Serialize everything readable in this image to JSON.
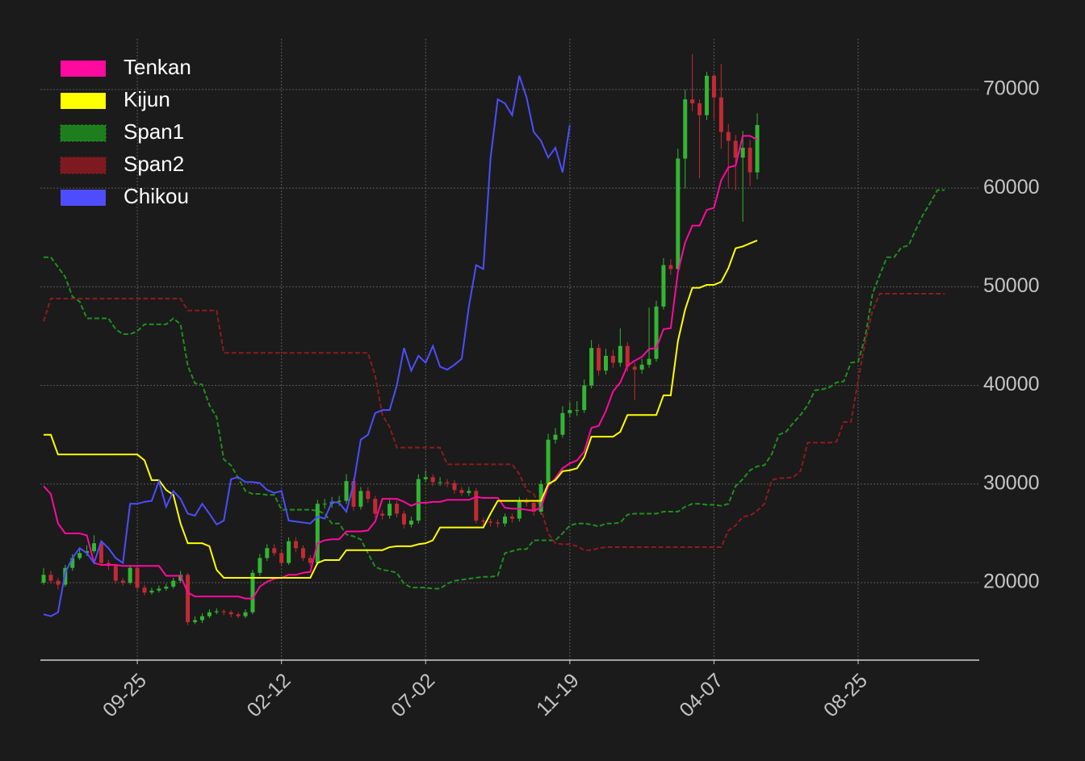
{
  "chart_data": {
    "type": "candlestick",
    "up_color": "#33b533",
    "down_color": "#c22a35",
    "candles": {
      "open": [
        20000,
        20800,
        20200,
        19800,
        21500,
        22500,
        23000,
        23200,
        24000,
        22000,
        21700,
        20200,
        20000,
        21500,
        19500,
        19000,
        19200,
        19400,
        19600,
        20200,
        20800,
        16000,
        16200,
        16600,
        17000,
        17100,
        17000,
        16800,
        16600,
        17000,
        21000,
        22500,
        23500,
        23000,
        22000,
        24200,
        23500,
        22500,
        22000,
        28000,
        28000,
        28200,
        28300,
        30300,
        27700,
        29300,
        28500,
        27000,
        26800,
        28000,
        27000,
        25900,
        26300,
        30500,
        30700,
        30200,
        30200,
        30100,
        29400,
        29100,
        29300,
        26300,
        26200,
        26100,
        26000,
        26700,
        26500,
        28200,
        28100,
        27200,
        30000,
        34500,
        35000,
        37200,
        37500,
        37500,
        40000,
        43800,
        41500,
        43000,
        42300,
        44000,
        41900,
        41600,
        42100,
        42700,
        48000,
        52200,
        51800,
        63000,
        69000,
        68600,
        67400,
        71400,
        69200,
        65700,
        64800,
        63100,
        64100,
        61600
      ],
      "high": [
        21500,
        21200,
        20500,
        21800,
        22900,
        23500,
        23800,
        24800,
        24300,
        22300,
        21900,
        20500,
        21800,
        21700,
        19800,
        19500,
        19700,
        19900,
        20500,
        21200,
        21000,
        16600,
        16900,
        17300,
        17400,
        17300,
        17200,
        17000,
        17300,
        21300,
        22900,
        23900,
        23900,
        23300,
        24600,
        24600,
        23800,
        22800,
        28400,
        28500,
        28700,
        28800,
        31000,
        30600,
        29700,
        29700,
        28800,
        27400,
        28400,
        28300,
        27300,
        26700,
        31000,
        31400,
        31000,
        30700,
        30500,
        30400,
        29700,
        29700,
        29600,
        26600,
        26500,
        26400,
        27000,
        27000,
        28700,
        28600,
        28400,
        30400,
        35100,
        35700,
        37900,
        38300,
        38400,
        40600,
        44600,
        44200,
        43700,
        43600,
        45800,
        44400,
        42300,
        42700,
        47900,
        48600,
        52900,
        52800,
        64000,
        70000,
        73600,
        69000,
        71800,
        71600,
        72600,
        66500,
        65400,
        65800,
        64900,
        67600
      ],
      "low": [
        19800,
        19900,
        19300,
        19600,
        21200,
        22300,
        22700,
        23000,
        21700,
        21300,
        19900,
        19700,
        19800,
        19200,
        18700,
        18800,
        19000,
        19200,
        19400,
        20000,
        15700,
        15800,
        15900,
        16400,
        16800,
        16700,
        16500,
        16400,
        16400,
        16800,
        20700,
        22200,
        22700,
        21700,
        21800,
        23100,
        22200,
        21700,
        21800,
        27500,
        27600,
        27800,
        28000,
        27300,
        27400,
        28100,
        26600,
        26400,
        26500,
        26600,
        25500,
        25600,
        26000,
        30200,
        29800,
        29800,
        29700,
        29000,
        28800,
        28800,
        26000,
        25800,
        25700,
        25600,
        25700,
        26100,
        26200,
        27700,
        26800,
        26900,
        29700,
        34100,
        34700,
        36800,
        36900,
        37200,
        39700,
        41000,
        41100,
        41800,
        41900,
        41400,
        38500,
        41200,
        41800,
        42400,
        47700,
        51200,
        51500,
        60000,
        67800,
        61000,
        66900,
        67000,
        64000,
        60000,
        59800,
        56600,
        60200,
        60900
      ],
      "close": [
        20800,
        20200,
        19800,
        21500,
        22500,
        23000,
        23200,
        24000,
        22000,
        21700,
        20200,
        20000,
        21500,
        19500,
        19000,
        19200,
        19400,
        19600,
        20200,
        20800,
        16000,
        16200,
        16600,
        17000,
        17100,
        17000,
        16800,
        16600,
        17000,
        21000,
        22500,
        23500,
        23000,
        22000,
        24200,
        23500,
        22500,
        22000,
        28000,
        28000,
        28200,
        28300,
        30300,
        27700,
        29300,
        28500,
        27000,
        26800,
        28000,
        27000,
        25900,
        26300,
        30500,
        30700,
        30200,
        30200,
        30100,
        29400,
        29100,
        29300,
        26300,
        26200,
        26100,
        26000,
        26700,
        26500,
        28200,
        28100,
        27200,
        30000,
        34500,
        35000,
        37200,
        37500,
        37500,
        40000,
        43800,
        41500,
        43000,
        42300,
        44000,
        41900,
        41600,
        42100,
        42700,
        48000,
        52200,
        51800,
        63000,
        69000,
        68600,
        67400,
        71400,
        69200,
        65700,
        64800,
        63100,
        64100,
        61600,
        66400
      ]
    },
    "series": [
      {
        "name": "Tenkan",
        "color": "#ff0a9e",
        "style": "solid",
        "values": [
          29800,
          29000,
          26000,
          25000,
          25000,
          25000,
          24800,
          22000,
          21800,
          21800,
          21800,
          21700,
          21700,
          21700,
          21700,
          21700,
          21700,
          20700,
          20700,
          20700,
          19000,
          18600,
          18600,
          18600,
          18600,
          18600,
          18600,
          18600,
          18400,
          18400,
          19600,
          20100,
          20400,
          20500,
          20800,
          20800,
          21000,
          21100,
          24000,
          24300,
          24400,
          24400,
          25200,
          25200,
          25200,
          25300,
          26200,
          28500,
          28500,
          28500,
          28200,
          27800,
          28100,
          28100,
          28200,
          28200,
          28400,
          28400,
          28400,
          28400,
          28700,
          28600,
          28600,
          28600,
          27600,
          27500,
          27500,
          27400,
          27300,
          27600,
          29800,
          30600,
          31600,
          32100,
          32400,
          33300,
          35700,
          35900,
          37400,
          39400,
          40300,
          42000,
          42500,
          42900,
          43700,
          43800,
          45700,
          45800,
          51500,
          54500,
          56200,
          56200,
          57800,
          58000,
          60800,
          62100,
          62300,
          65300,
          65300,
          64900
        ]
      },
      {
        "name": "Kijun",
        "color": "#ffff00",
        "style": "solid",
        "values": [
          35000,
          35000,
          33000,
          33000,
          33000,
          33000,
          33000,
          33000,
          33000,
          33000,
          33000,
          33000,
          33000,
          33000,
          32400,
          30400,
          30400,
          29400,
          28900,
          26000,
          24000,
          24000,
          24000,
          23700,
          21300,
          20500,
          20500,
          20500,
          20500,
          20500,
          20500,
          20500,
          20500,
          20500,
          20500,
          20500,
          20500,
          20500,
          22000,
          22300,
          22300,
          22300,
          23300,
          23300,
          23300,
          23300,
          23300,
          23300,
          23600,
          23700,
          23700,
          23700,
          23900,
          24000,
          24300,
          25600,
          25600,
          25600,
          25600,
          25600,
          25600,
          25600,
          27000,
          28300,
          28300,
          28300,
          28300,
          28300,
          28300,
          28300,
          30000,
          30400,
          31300,
          31400,
          31600,
          32700,
          34800,
          34800,
          34800,
          34800,
          35300,
          37000,
          37000,
          37000,
          37000,
          37000,
          39000,
          39000,
          44500,
          47700,
          49900,
          49900,
          50200,
          50200,
          50500,
          51900,
          53900,
          54100,
          54400,
          54700
        ]
      },
      {
        "name": "Span1",
        "color": "#1f8f1f",
        "style": "dashed",
        "values": [
          53000,
          53000,
          52000,
          51000,
          49000,
          48500,
          46800,
          46800,
          46800,
          46800,
          45700,
          45200,
          45200,
          45500,
          46200,
          46200,
          46200,
          46200,
          46800,
          46200,
          42000,
          40200,
          40100,
          38000,
          36800,
          32500,
          31900,
          30600,
          29300,
          29000,
          29000,
          28900,
          28900,
          27400,
          27400,
          27400,
          27400,
          27400,
          27300,
          27000,
          26000,
          26000,
          24900,
          24700,
          24400,
          23000,
          21600,
          21300,
          21200,
          21000,
          19900,
          19500,
          19500,
          19500,
          19400,
          19400,
          19900,
          20200,
          20300,
          20400,
          20500,
          20600,
          20600,
          20700,
          23000,
          23200,
          23400,
          23400,
          24300,
          24300,
          24300,
          24300,
          25000,
          25800,
          26000,
          26000,
          25900,
          25700,
          26000,
          26000,
          26100,
          26900,
          27000,
          27000,
          27000,
          27000,
          27200,
          27200,
          27200,
          27700,
          28000,
          28000,
          27900,
          27900,
          27800,
          28000,
          29800,
          30500,
          31400,
          31800,
          31900,
          33000,
          35000,
          35300,
          36200,
          37000,
          38000,
          39500,
          39600,
          39800,
          40300,
          40400,
          42300,
          42400,
          45000,
          49300,
          51200,
          53000,
          53000,
          54000,
          54200,
          55800,
          57300,
          58500,
          59800,
          59800
        ]
      },
      {
        "name": "Span2",
        "color": "#8e1a20",
        "style": "dashed",
        "values": [
          46500,
          48800,
          48800,
          48800,
          48800,
          48800,
          48800,
          48800,
          48800,
          48800,
          48800,
          48800,
          48800,
          48800,
          48800,
          48800,
          48800,
          48800,
          48800,
          48800,
          47600,
          47600,
          47600,
          47600,
          47600,
          43300,
          43300,
          43300,
          43300,
          43300,
          43300,
          43300,
          43300,
          43300,
          43300,
          43300,
          43300,
          43300,
          43300,
          43300,
          43300,
          43300,
          43300,
          43300,
          43300,
          43300,
          41000,
          37000,
          35800,
          33700,
          33700,
          33700,
          33700,
          33700,
          33700,
          33700,
          32000,
          32000,
          32000,
          32000,
          32000,
          32000,
          32000,
          32000,
          32000,
          32000,
          31000,
          29400,
          29000,
          27500,
          25000,
          24000,
          23900,
          23900,
          23700,
          23300,
          23300,
          23500,
          23600,
          23600,
          23600,
          23600,
          23600,
          23600,
          23600,
          23600,
          23600,
          23600,
          23600,
          23600,
          23600,
          23600,
          23600,
          23600,
          23600,
          25300,
          25800,
          26700,
          26800,
          27300,
          28000,
          30400,
          30600,
          30600,
          30700,
          31300,
          34200,
          34200,
          34200,
          34200,
          34300,
          36300,
          36300,
          40500,
          44500,
          47600,
          49300,
          49300,
          49300,
          49300,
          49300,
          49300,
          49300,
          49300,
          49300,
          49300
        ]
      },
      {
        "name": "Chikou",
        "color": "#4d4dff",
        "style": "solid",
        "values": [
          16800,
          16600,
          17000,
          21000,
          22500,
          23500,
          23000,
          22000,
          24200,
          23500,
          22500,
          22000,
          28000,
          28000,
          28200,
          28300,
          30300,
          27700,
          29300,
          28500,
          27000,
          26800,
          28000,
          27000,
          25900,
          26300,
          30500,
          30700,
          30200,
          30200,
          30100,
          29400,
          29100,
          29300,
          26300,
          26200,
          26100,
          26000,
          26700,
          26500,
          28200,
          28100,
          27200,
          30000,
          34500,
          35000,
          37200,
          37500,
          37500,
          40000,
          43800,
          41500,
          43000,
          42300,
          44000,
          41900,
          41600,
          42100,
          42700,
          48000,
          52200,
          51800,
          63000,
          69000,
          68600,
          67400,
          71400,
          69200,
          65700,
          64800,
          63100,
          64100,
          61600,
          66400
        ]
      }
    ],
    "xlim": [
      -0.45,
      129.8
    ],
    "xticks": [
      {
        "value": 13,
        "label": "09-25"
      },
      {
        "value": 33,
        "label": "02-12"
      },
      {
        "value": 53,
        "label": "07-02"
      },
      {
        "value": 73,
        "label": "11-19"
      },
      {
        "value": 93,
        "label": "04-07"
      },
      {
        "value": 113,
        "label": "08-25"
      }
    ],
    "ylim": [
      12150,
      75150
    ],
    "yticks": [
      20000,
      30000,
      40000,
      50000,
      60000,
      70000
    ],
    "grid": true,
    "legend": "upper left"
  }
}
